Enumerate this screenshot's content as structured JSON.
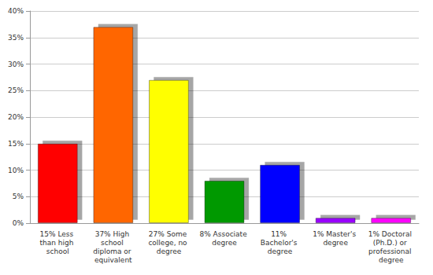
{
  "chart_data": {
    "type": "bar",
    "categories": [
      "15% Less than high school",
      "37% High school diploma or equivalent",
      "27% Some college, no degree",
      "8% Associate degree",
      "11% Bachelor's degree",
      "1% Master's degree",
      "1% Doctoral (Ph.D.) or professional degree"
    ],
    "values": [
      15,
      37,
      27,
      8,
      11,
      1,
      1
    ],
    "colors": [
      "#ff0000",
      "#ff6600",
      "#ffff00",
      "#009900",
      "#0000ff",
      "#9900ff",
      "#ff00ff"
    ],
    "ylim": [
      0,
      40
    ],
    "yticks": [
      {
        "value": 0,
        "label": "0%"
      },
      {
        "value": 5,
        "label": "5%"
      },
      {
        "value": 10,
        "label": "10%"
      },
      {
        "value": 15,
        "label": "15%"
      },
      {
        "value": 20,
        "label": "20%"
      },
      {
        "value": 25,
        "label": "25%"
      },
      {
        "value": 30,
        "label": "30%"
      },
      {
        "value": 35,
        "label": "35%"
      },
      {
        "value": 40,
        "label": "40%"
      }
    ],
    "grid": true
  }
}
